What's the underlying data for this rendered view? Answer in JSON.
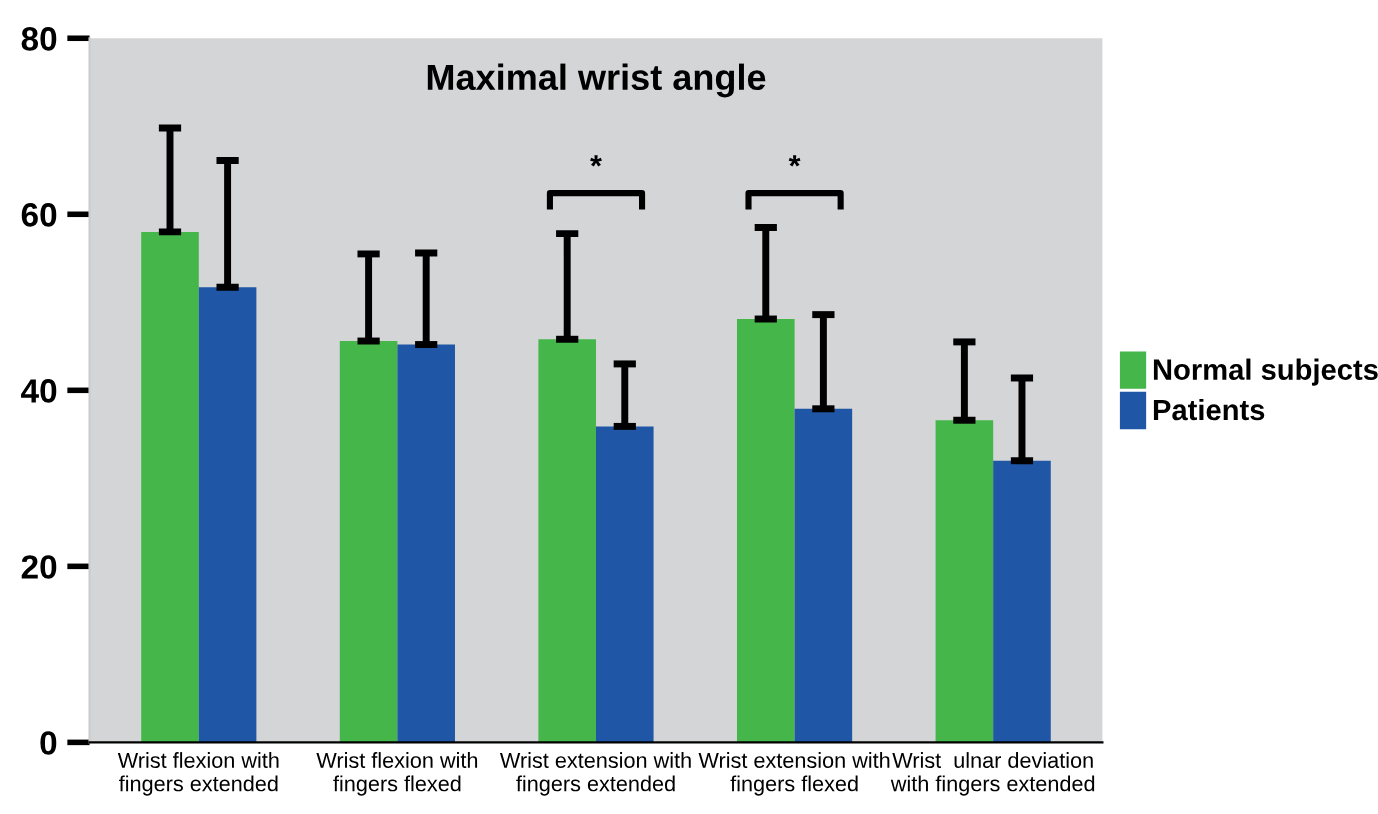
{
  "chart_data": {
    "type": "bar",
    "title": "Maximal wrist angle",
    "categories": [
      "Wrist flexion with\nfingers extended",
      "Wrist flexion with\nfingers flexed",
      "Wrist extension with\nfingers extended",
      "Wrist extension with\nfingers flexed",
      "Wrist  ulnar deviation\nwith fingers extended"
    ],
    "series": [
      {
        "name": "Normal subjects",
        "color": "#45b649",
        "values": [
          58,
          45.6,
          45.8,
          48.1,
          36.6
        ],
        "errors": [
          [
            58,
            69.8
          ],
          [
            45.6,
            55.5
          ],
          [
            45.8,
            57.8
          ],
          [
            48.1,
            58.5
          ],
          [
            36.6,
            45.5
          ]
        ]
      },
      {
        "name": "Patients",
        "color": "#1f56a5",
        "values": [
          51.7,
          45.2,
          35.9,
          37.9,
          32
        ],
        "errors": [
          [
            51.7,
            66.1
          ],
          [
            45.2,
            55.6
          ],
          [
            35.9,
            43
          ],
          [
            37.9,
            48.6
          ],
          [
            32,
            41.4
          ]
        ]
      }
    ],
    "annotations": [
      "*",
      "*"
    ],
    "ylim": [
      0,
      80
    ],
    "yticks": [
      0,
      20,
      40,
      60,
      80
    ],
    "grid": false,
    "legend": "right"
  }
}
